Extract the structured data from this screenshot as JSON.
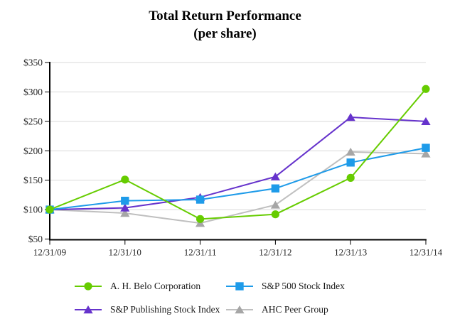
{
  "chart_data": {
    "type": "line",
    "title": "Total Return Performance",
    "subtitle": "(per share)",
    "categories": [
      "12/31/09",
      "12/31/10",
      "12/31/11",
      "12/31/12",
      "12/31/13",
      "12/31/14"
    ],
    "y_tick_values": [
      50,
      100,
      150,
      200,
      250,
      300,
      350
    ],
    "y_tick_labels": [
      "$50",
      "$100",
      "$150",
      "$200",
      "$250",
      "$300",
      "$350"
    ],
    "ylim": [
      50,
      350
    ],
    "grid": "horizontal",
    "gridline_color": "#D9D9D9",
    "axis_color": "#000000",
    "tick_label_color": "#262626",
    "legend_position": "bottom",
    "series": [
      {
        "name": "A. H. Belo Corporation",
        "marker": "circle",
        "color": "#66CC00",
        "values": [
          100,
          151,
          84,
          92,
          154,
          305
        ]
      },
      {
        "name": "S&P 500 Stock Index",
        "marker": "square",
        "color": "#1E9BE9",
        "values": [
          100,
          115,
          117,
          136,
          180,
          205
        ]
      },
      {
        "name": "S&P Publishing Stock Index",
        "marker": "triangle",
        "color": "#6633CC",
        "values": [
          100,
          103,
          121,
          156,
          257,
          250
        ]
      },
      {
        "name": "AHC Peer Group",
        "marker": "triangle",
        "color": "#A6A6A6",
        "line_color": "#BFBFBF",
        "values": [
          100,
          94,
          77,
          108,
          198,
          195
        ]
      }
    ]
  }
}
